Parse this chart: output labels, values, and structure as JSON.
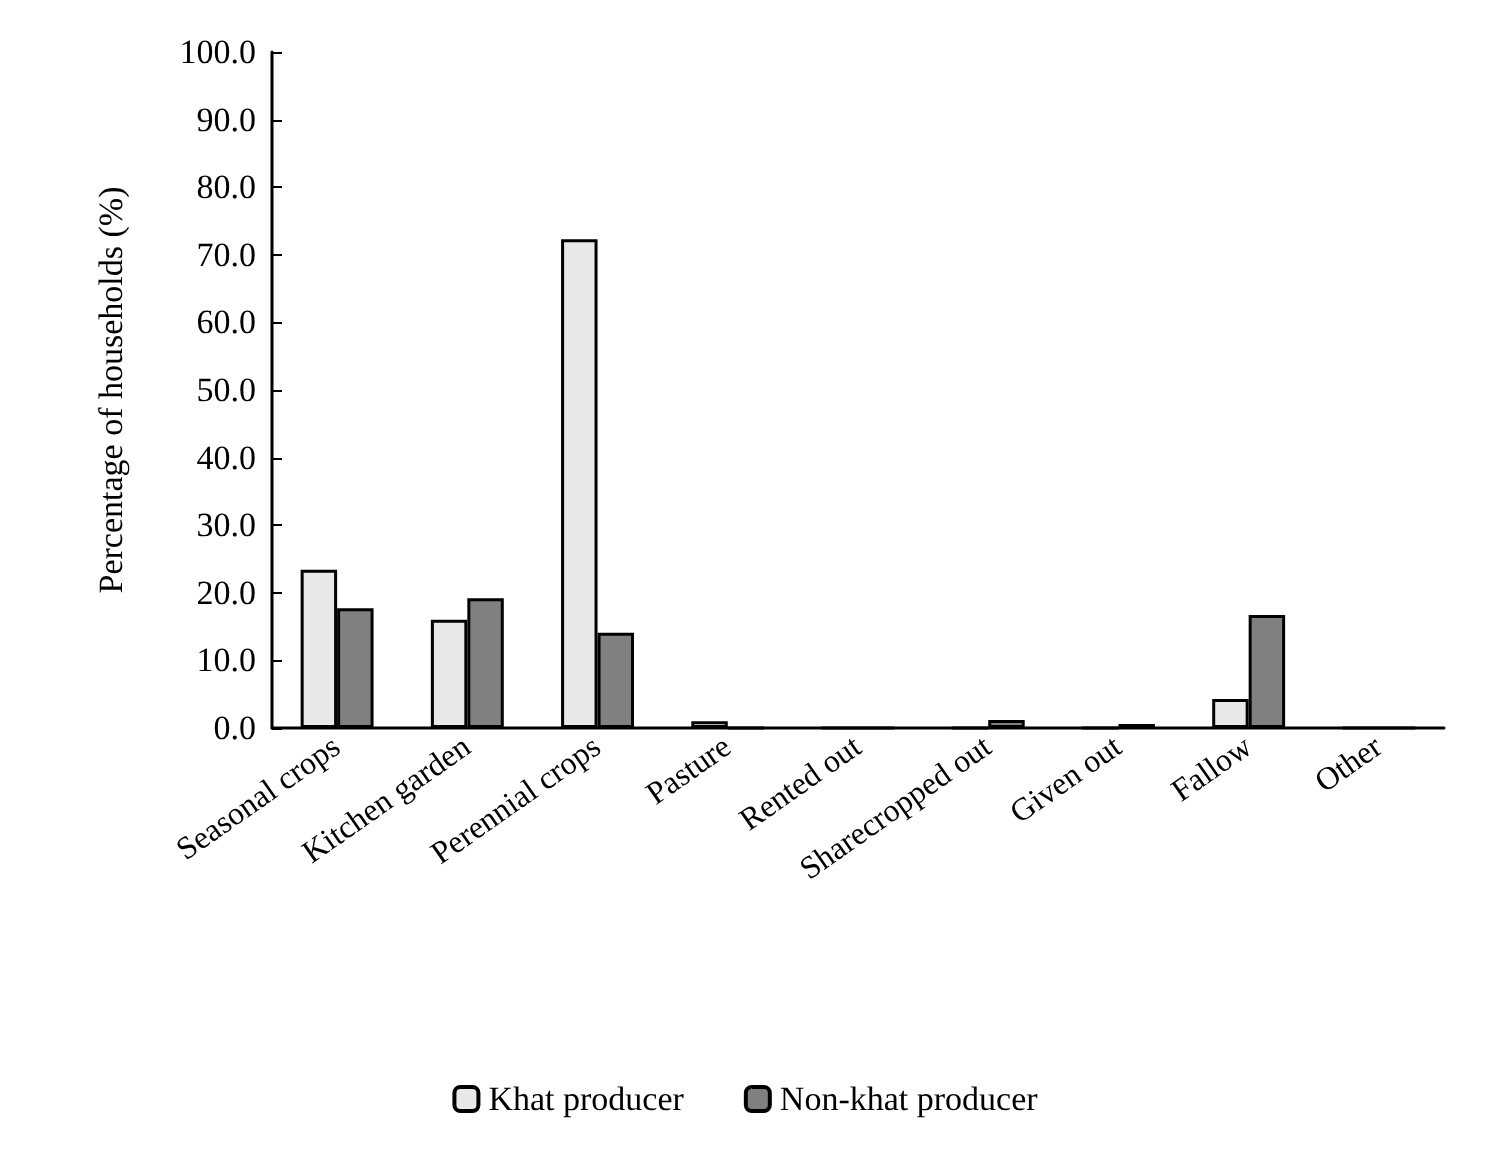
{
  "chart_data": {
    "type": "bar",
    "ylabel": "Percentage of households (%)",
    "categories": [
      "Seasonal crops",
      "Kitchen garden",
      "Perennial crops",
      "Pasture",
      "Rented out",
      "Sharecropped out",
      "Given out",
      "Fallow",
      "Other"
    ],
    "series": [
      {
        "name": "Khat producer",
        "color": "#e8e8e8",
        "values": [
          23.4,
          16.0,
          72.3,
          1.0,
          0,
          0,
          0,
          4.3,
          0
        ]
      },
      {
        "name": "Non-khat producer",
        "color": "#808080",
        "values": [
          17.7,
          19.2,
          14.1,
          0,
          0,
          1.2,
          0.6,
          16.7,
          0
        ]
      }
    ],
    "ylim": [
      0,
      100
    ],
    "yticks": [
      {
        "value": 0,
        "label": "0.0"
      },
      {
        "value": 10,
        "label": "10.0"
      },
      {
        "value": 20,
        "label": "20.0"
      },
      {
        "value": 30,
        "label": "30.0"
      },
      {
        "value": 40,
        "label": "40.0"
      },
      {
        "value": 50,
        "label": "50.0"
      },
      {
        "value": 60,
        "label": "60.0"
      },
      {
        "value": 70,
        "label": "70.0"
      },
      {
        "value": 80,
        "label": "80.0"
      },
      {
        "value": 90,
        "label": "90.0"
      },
      {
        "value": 100,
        "label": "100.0"
      }
    ],
    "grid": false,
    "legend": "bottom"
  }
}
